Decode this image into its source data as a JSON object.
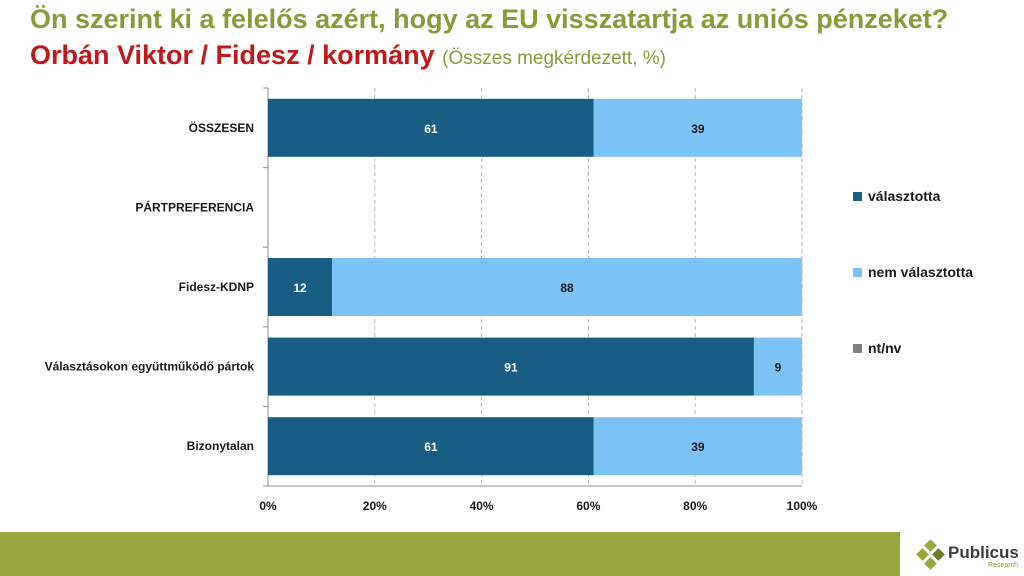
{
  "header": {
    "title": "Ön szerint ki a felelős azért, hogy az EU visszatartja az uniós pénzeket?",
    "subtitle_main": "Orbán Viktor / Fidesz / kormány",
    "subtitle_note": "(Összes megkérdezett, %)"
  },
  "chart_data": {
    "type": "bar",
    "orientation": "horizontal",
    "stacked": true,
    "categories": [
      "ÖSSZESEN",
      "PÁRTPREFERENCIA",
      "Fidesz-KDNP",
      "Választásokon együttműködő pártok",
      "Bizonytalan"
    ],
    "series": [
      {
        "name": "választotta",
        "color": "#175d84",
        "values": [
          61,
          null,
          12,
          91,
          61
        ]
      },
      {
        "name": "nem választotta",
        "color": "#7cc3f5",
        "values": [
          39,
          null,
          88,
          9,
          39
        ]
      },
      {
        "name": "nt/nv",
        "color": "#7f7f7f",
        "values": [
          0,
          null,
          0,
          0,
          0
        ]
      }
    ],
    "xticks": [
      "0%",
      "20%",
      "40%",
      "60%",
      "80%",
      "100%"
    ],
    "xlim": [
      0,
      100
    ],
    "grid": "vertical dashed",
    "legend": "right"
  },
  "brand": {
    "name": "Publicus",
    "tagline": "Research",
    "accent": "#9aa63e"
  }
}
